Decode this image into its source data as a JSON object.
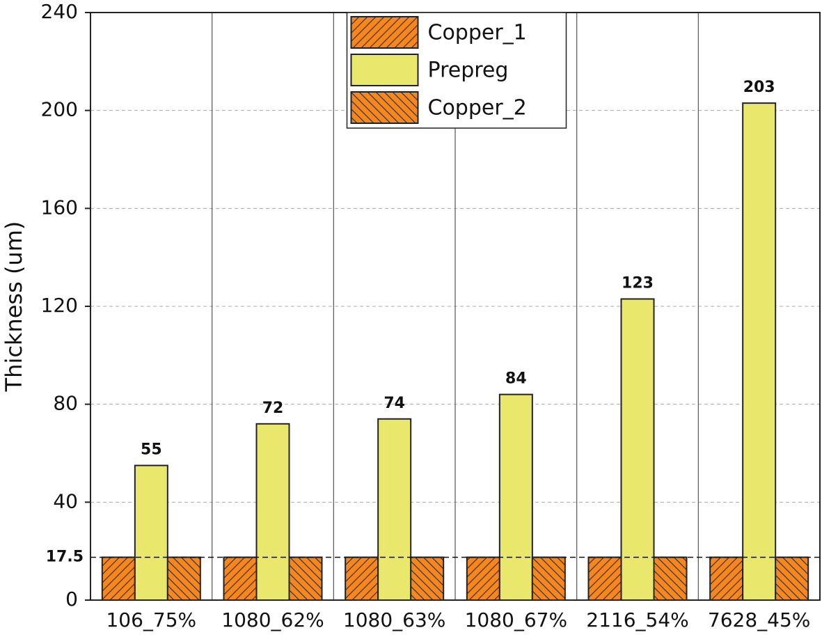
{
  "chart_data": {
    "type": "bar",
    "y_label": "Thickness (um)",
    "categories": [
      "106_75%",
      "1080_62%",
      "1080_63%",
      "1080_67%",
      "2116_54%",
      "7628_45%"
    ],
    "series": [
      {
        "name": "Copper_1",
        "color": "#f7861c",
        "hatch": "/",
        "values": [
          17.5,
          17.5,
          17.5,
          17.5,
          17.5,
          17.5
        ]
      },
      {
        "name": "Prepreg",
        "color": "#e9e86c",
        "show_labels": true,
        "values": [
          55,
          72,
          74,
          84,
          123,
          203
        ]
      },
      {
        "name": "Copper_2",
        "color": "#f7861c",
        "hatch": "\\",
        "values": [
          17.5,
          17.5,
          17.5,
          17.5,
          17.5,
          17.5
        ]
      }
    ],
    "ylim": [
      0,
      240
    ],
    "yticks": [
      0,
      40,
      80,
      120,
      160,
      200,
      240
    ],
    "hline": 17.5,
    "grid": true,
    "legend": "upper center"
  }
}
